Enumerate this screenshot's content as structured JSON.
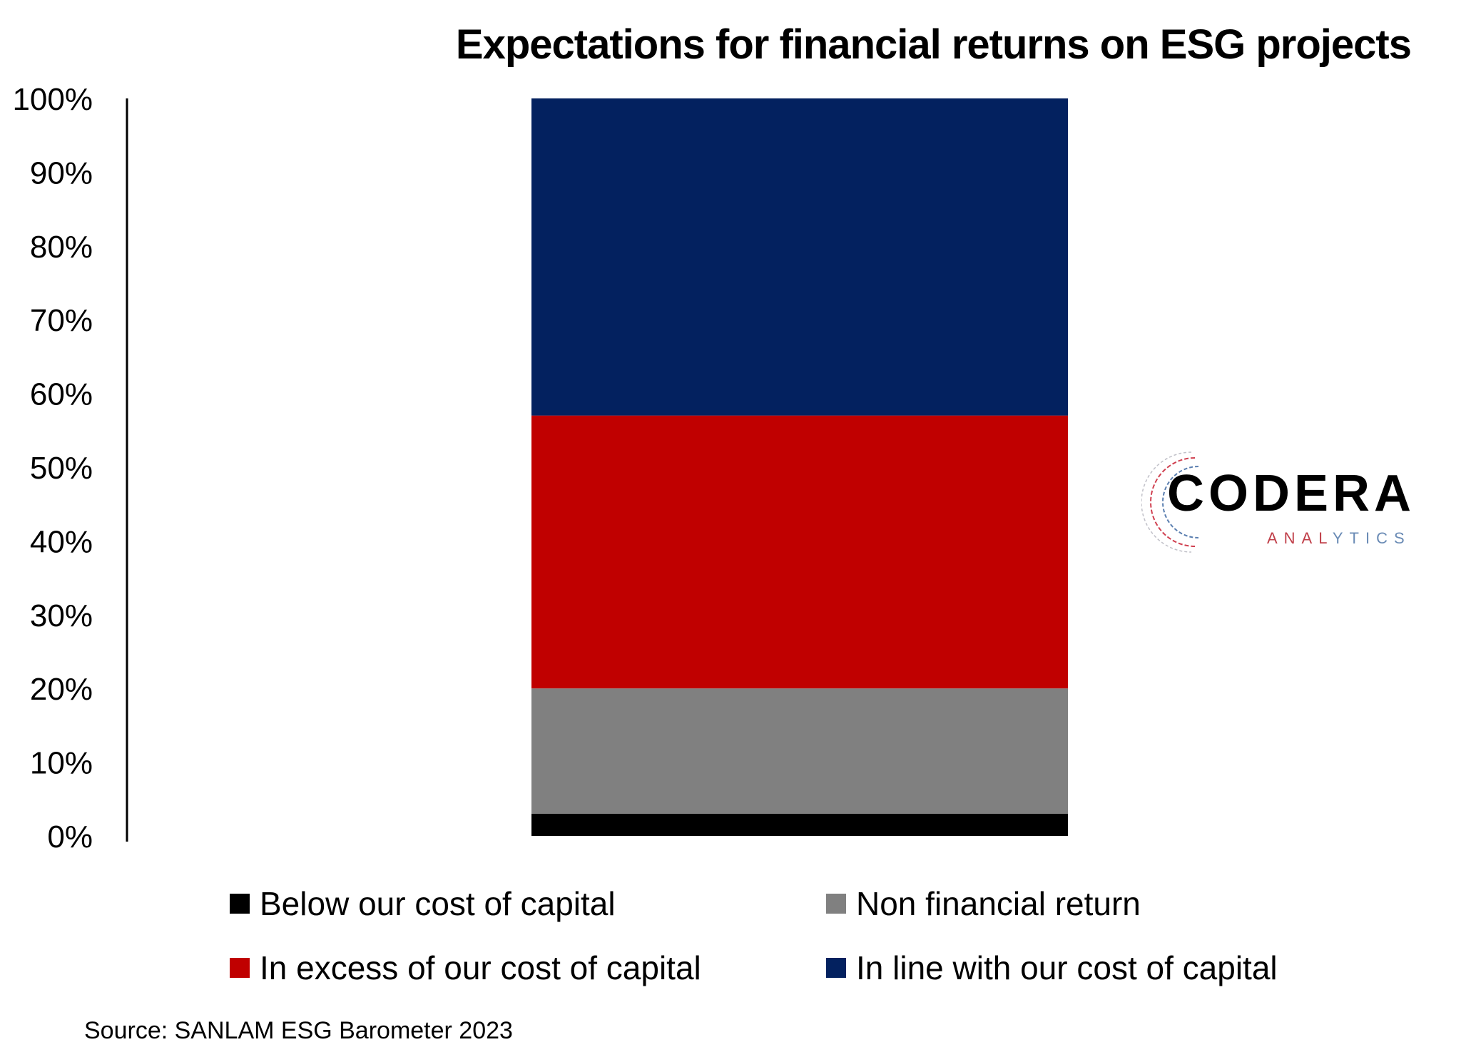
{
  "chart_data": {
    "type": "bar",
    "stacked": true,
    "title": "Expectations for financial returns on ESG projects",
    "categories": [
      ""
    ],
    "series": [
      {
        "name": "Below our cost of capital",
        "values": [
          3
        ],
        "color": "#000000"
      },
      {
        "name": "Non financial return",
        "values": [
          17
        ],
        "color": "#808080"
      },
      {
        "name": "In excess of our cost of capital",
        "values": [
          37
        ],
        "color": "#C00000"
      },
      {
        "name": "In line with our cost of capital",
        "values": [
          43
        ],
        "color": "#03215F"
      }
    ],
    "ylim": [
      0,
      100
    ],
    "yticks": [
      "0%",
      "10%",
      "20%",
      "30%",
      "40%",
      "50%",
      "60%",
      "70%",
      "80%",
      "90%",
      "100%"
    ],
    "xlabel": "",
    "ylabel": "",
    "grid": false,
    "legend_position": "bottom",
    "source": "Source: SANLAM ESG Barometer 2023"
  },
  "logo": {
    "name": "CODERA",
    "sub": "ANALYTICS"
  }
}
